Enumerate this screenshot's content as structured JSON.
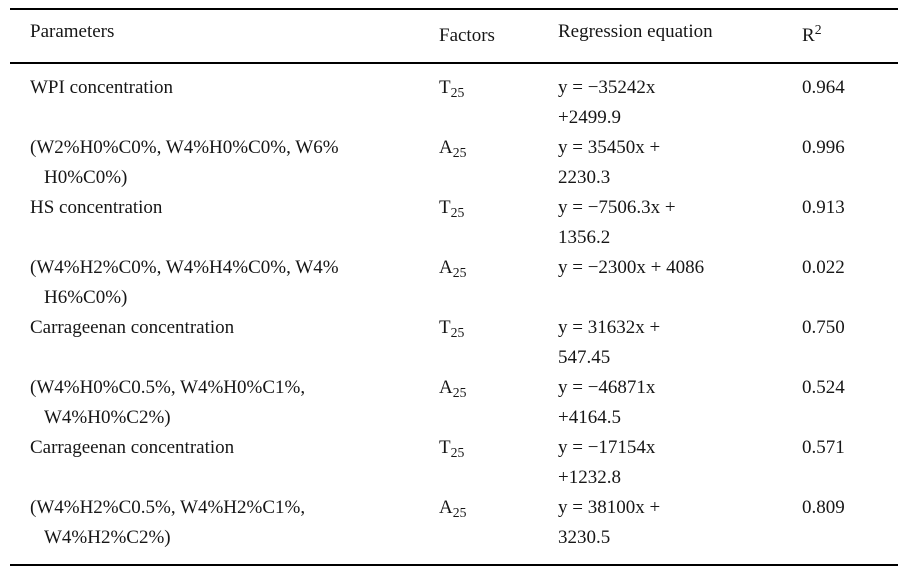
{
  "table": {
    "header": {
      "parameters": "Parameters",
      "factors": "Factors",
      "regression_equation": "Regression equation",
      "r_base": "R",
      "r_superscript": "2"
    },
    "rows": [
      {
        "param_line1": "WPI concentration",
        "param_line2": "",
        "factor_base": "T",
        "factor_sub": "25",
        "eq_line1": "y = −35242x",
        "eq_line2": "+2499.9",
        "r2": "0.964"
      },
      {
        "param_line1": "(W2%H0%C0%, W4%H0%C0%, W6%",
        "param_line2": "H0%C0%)",
        "factor_base": "A",
        "factor_sub": "25",
        "eq_line1": "y = 35450x +",
        "eq_line2": "2230.3",
        "r2": "0.996"
      },
      {
        "param_line1": "HS concentration",
        "param_line2": "",
        "factor_base": "T",
        "factor_sub": "25",
        "eq_line1": "y = −7506.3x +",
        "eq_line2": "1356.2",
        "r2": "0.913"
      },
      {
        "param_line1": "(W4%H2%C0%, W4%H4%C0%, W4%",
        "param_line2": "H6%C0%)",
        "factor_base": "A",
        "factor_sub": "25",
        "eq_line1": "y = −2300x + 4086",
        "eq_line2": "",
        "r2": "0.022"
      },
      {
        "param_line1": "Carrageenan concentration",
        "param_line2": "",
        "factor_base": "T",
        "factor_sub": "25",
        "eq_line1": "y = 31632x +",
        "eq_line2": "547.45",
        "r2": "0.750"
      },
      {
        "param_line1": "(W4%H0%C0.5%, W4%H0%C1%,",
        "param_line2": "W4%H0%C2%)",
        "factor_base": "A",
        "factor_sub": "25",
        "eq_line1": "y = −46871x",
        "eq_line2": "+4164.5",
        "r2": "0.524"
      },
      {
        "param_line1": "Carrageenan concentration",
        "param_line2": "",
        "factor_base": "T",
        "factor_sub": "25",
        "eq_line1": "y = −17154x",
        "eq_line2": "+1232.8",
        "r2": "0.571"
      },
      {
        "param_line1": "(W4%H2%C0.5%, W4%H2%C1%,",
        "param_line2": "W4%H2%C2%)",
        "factor_base": "A",
        "factor_sub": "25",
        "eq_line1": "y = 38100x +",
        "eq_line2": "3230.5",
        "r2": "0.809"
      }
    ]
  }
}
